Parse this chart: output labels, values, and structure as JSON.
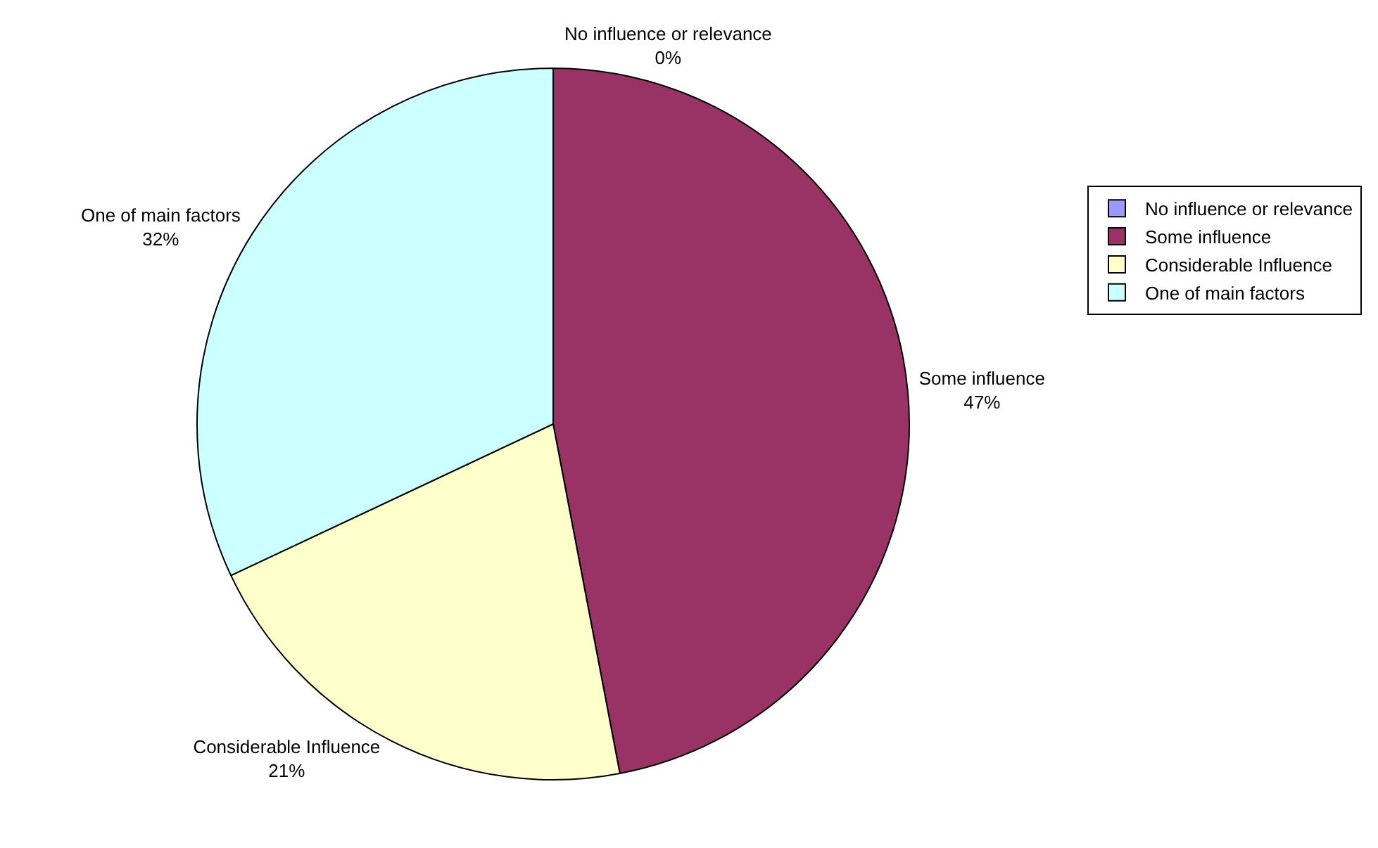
{
  "chart_data": {
    "type": "pie",
    "categories": [
      "No influence or relevance",
      "Some influence",
      "Considerable Influence",
      "One of main factors"
    ],
    "values": [
      0,
      47,
      21,
      32
    ],
    "value_labels": [
      "0%",
      "47%",
      "21%",
      "32%"
    ],
    "colors": [
      "#9999ff",
      "#993366",
      "#ffffcc",
      "#ccffff"
    ],
    "legend": "right"
  }
}
